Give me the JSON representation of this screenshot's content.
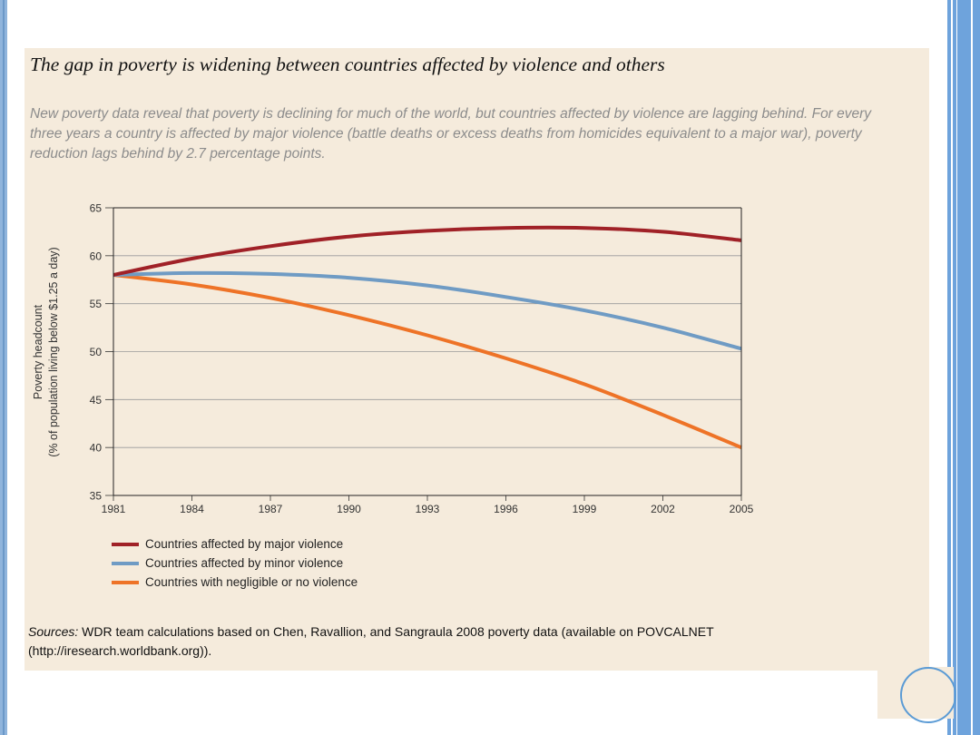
{
  "title": "The gap in poverty is widening between countries affected by violence and others",
  "subtitle": "New poverty data reveal that poverty is declining for much of the world, but countries affected by violence are lagging behind. For every three years a country is affected by major violence (battle deaths or excess deaths from homicides equivalent to a major war), poverty reduction lags behind by 2.7 percentage points.",
  "sources": {
    "label": "Sources:",
    "text": "WDR team calculations based on Chen, Ravallion, and Sangraula 2008 poverty data (available on POVCALNET (http://iresearch.worldbank.org))."
  },
  "chart_data": {
    "type": "line",
    "ylabel_line1": "Poverty headcount",
    "ylabel_line2": "(% of population living below $1.25 a day)",
    "ylim": [
      35,
      65
    ],
    "yticks": [
      35,
      40,
      45,
      50,
      55,
      60,
      65
    ],
    "xlim": [
      1981,
      2005
    ],
    "xticks": [
      1981,
      1984,
      1987,
      1990,
      1993,
      1996,
      1999,
      2002,
      2005
    ],
    "grid": true,
    "series": [
      {
        "name": "Countries affected by major violence",
        "color": "#a02127",
        "x": [
          1981,
          1984,
          1987,
          1990,
          1993,
          1996,
          1999,
          2002,
          2005
        ],
        "y": [
          58.0,
          59.7,
          61.0,
          62.0,
          62.6,
          62.9,
          62.9,
          62.5,
          61.6
        ]
      },
      {
        "name": "Countries affected by minor violence",
        "color": "#6f9bc4",
        "x": [
          1981,
          1984,
          1987,
          1990,
          1993,
          1996,
          1999,
          2002,
          2005
        ],
        "y": [
          58.0,
          58.2,
          58.1,
          57.7,
          56.9,
          55.7,
          54.3,
          52.5,
          50.3
        ]
      },
      {
        "name": "Countries with negligible or no violence",
        "color": "#ee7327",
        "x": [
          1981,
          1984,
          1987,
          1990,
          1993,
          1996,
          1999,
          2002,
          2005
        ],
        "y": [
          58.0,
          57.0,
          55.6,
          53.8,
          51.7,
          49.3,
          46.6,
          43.4,
          40.0
        ]
      }
    ]
  }
}
